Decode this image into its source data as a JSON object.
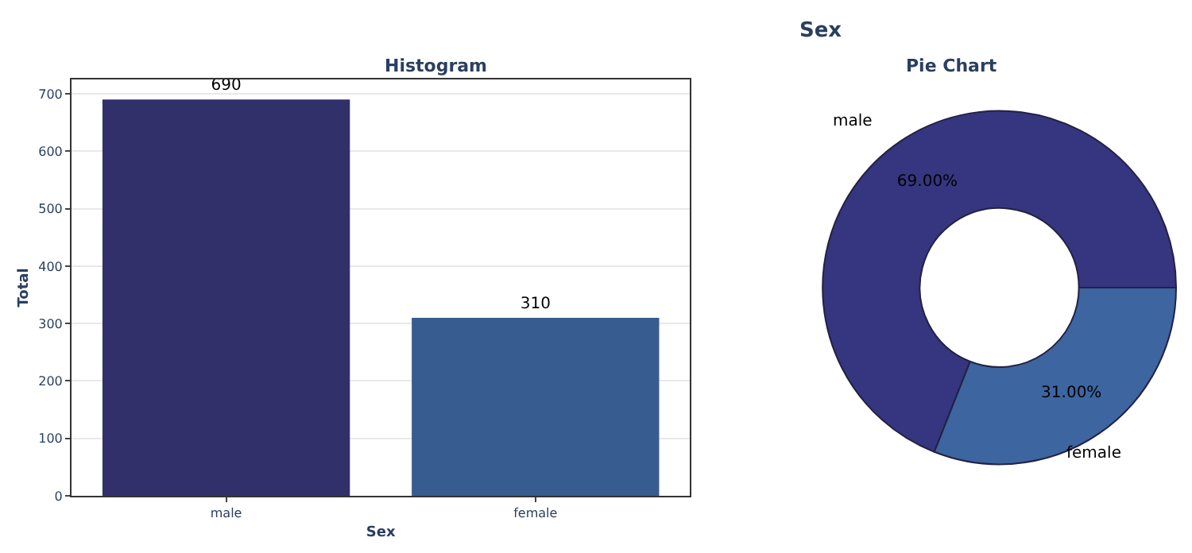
{
  "chart_data": [
    {
      "type": "bar",
      "title": "Histogram",
      "xlabel": "Sex",
      "ylabel": "Total",
      "categories": [
        "male",
        "female"
      ],
      "values": [
        690,
        310
      ],
      "colors": [
        "#31306a",
        "#375c8f"
      ],
      "ylim": [
        0,
        725
      ],
      "yticks": [
        0,
        100,
        200,
        300,
        400,
        500,
        600,
        700
      ],
      "grid": "y",
      "data_labels": true,
      "annotations": [
        "Sex"
      ]
    },
    {
      "type": "donut",
      "title": "Pie Chart",
      "categories": [
        "male",
        "female"
      ],
      "values": [
        69,
        31
      ],
      "colors": [
        "#36357f",
        "#3d65a0"
      ],
      "value_labels": [
        "69.00%",
        "31.00%"
      ]
    }
  ]
}
